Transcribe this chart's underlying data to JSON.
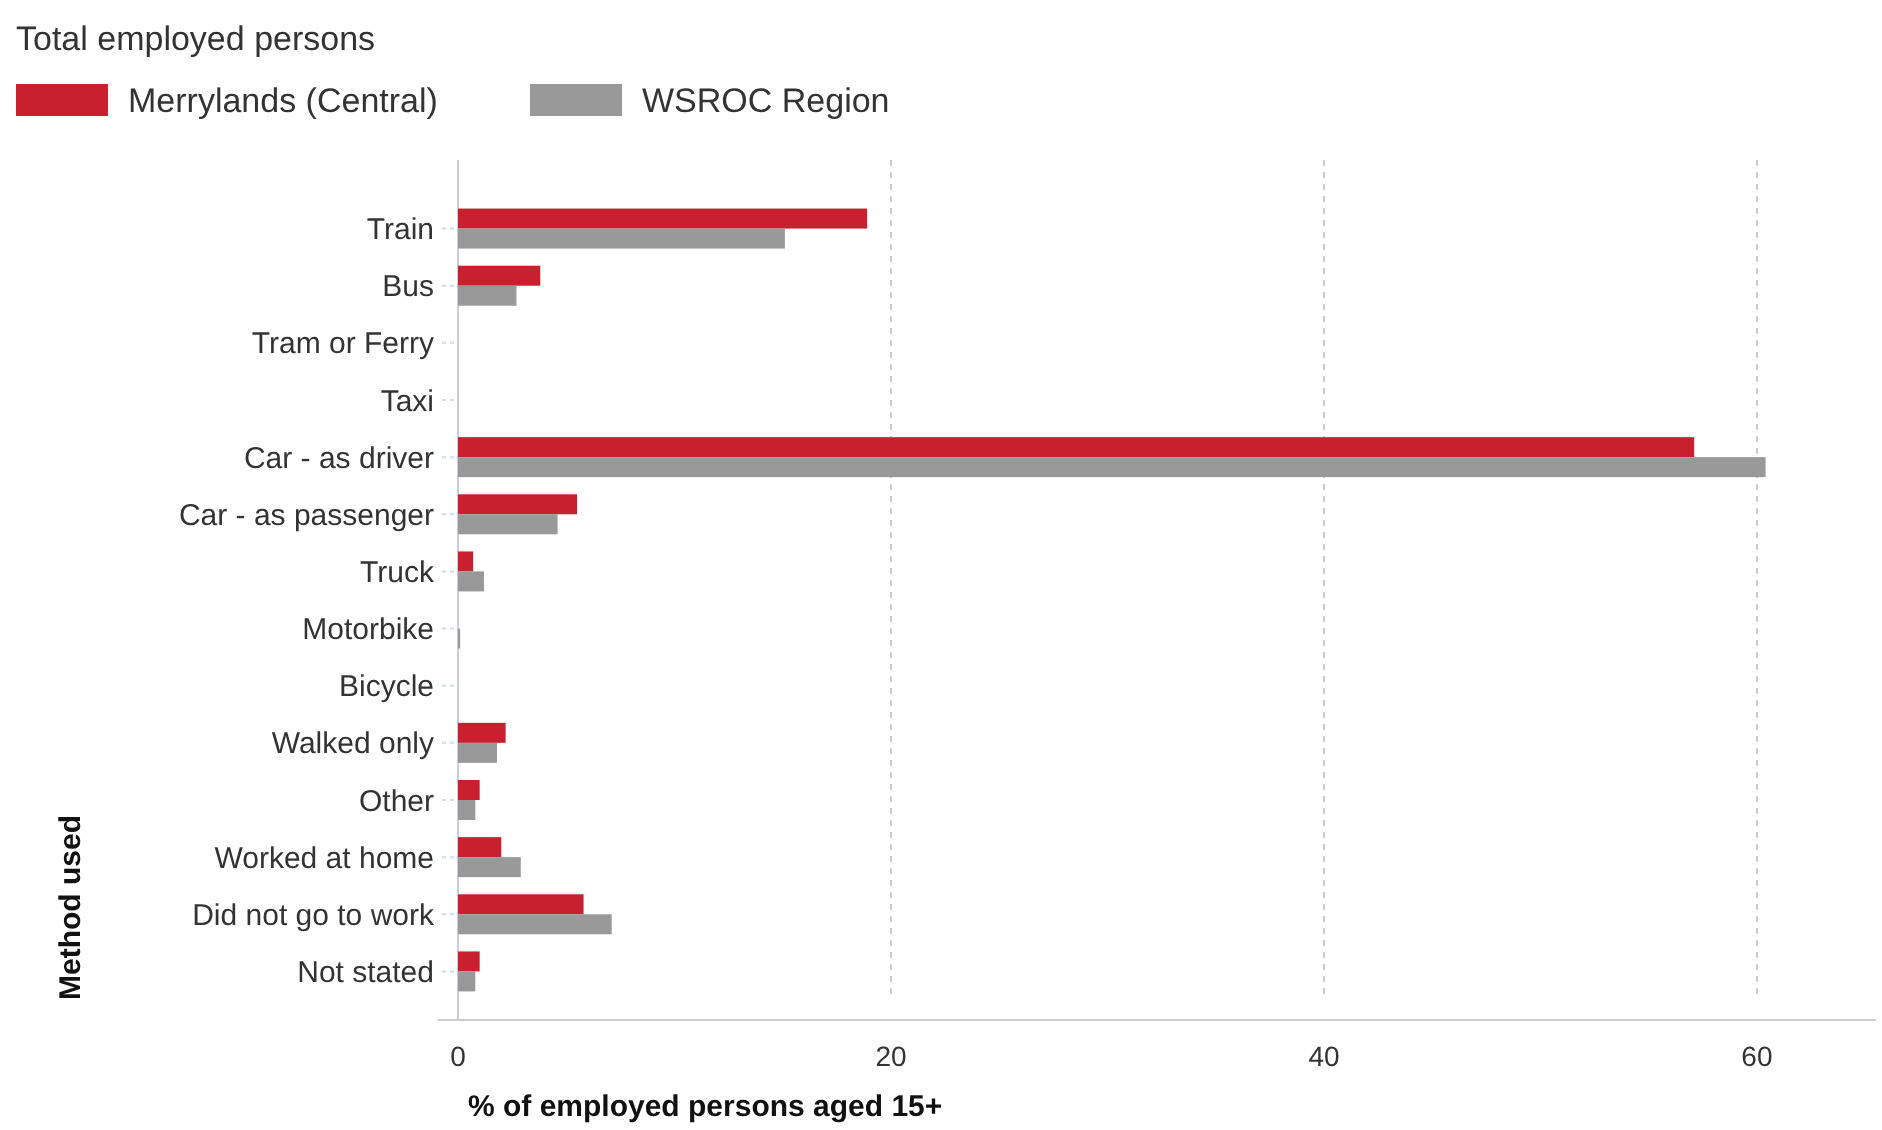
{
  "chart_data": {
    "type": "bar",
    "orientation": "horizontal",
    "title": "Total employed persons",
    "xlabel": "% of employed persons aged 15+",
    "ylabel": "Method used",
    "categories": [
      "Train",
      "Bus",
      "Tram or Ferry",
      "Taxi",
      "Car - as driver",
      "Car - as passenger",
      "Truck",
      "Motorbike",
      "Bicycle",
      "Walked only",
      "Other",
      "Worked at home",
      "Did not go to work",
      "Not stated"
    ],
    "series": [
      {
        "name": "Merrylands (Central)",
        "color": "#c8202f",
        "values": [
          18.9,
          3.8,
          0,
          0,
          57.1,
          5.5,
          0.7,
          0,
          0,
          2.2,
          1.0,
          2.0,
          5.8,
          1.0
        ]
      },
      {
        "name": "WSROC Region",
        "color": "#999999",
        "values": [
          15.1,
          2.7,
          0,
          0,
          60.4,
          4.6,
          1.2,
          0.1,
          0,
          1.8,
          0.8,
          2.9,
          7.1,
          0.8
        ]
      }
    ],
    "xlim": [
      0,
      65.5
    ],
    "xticks": [
      0,
      20,
      40,
      60
    ],
    "grid": "x",
    "legend": "top left"
  }
}
